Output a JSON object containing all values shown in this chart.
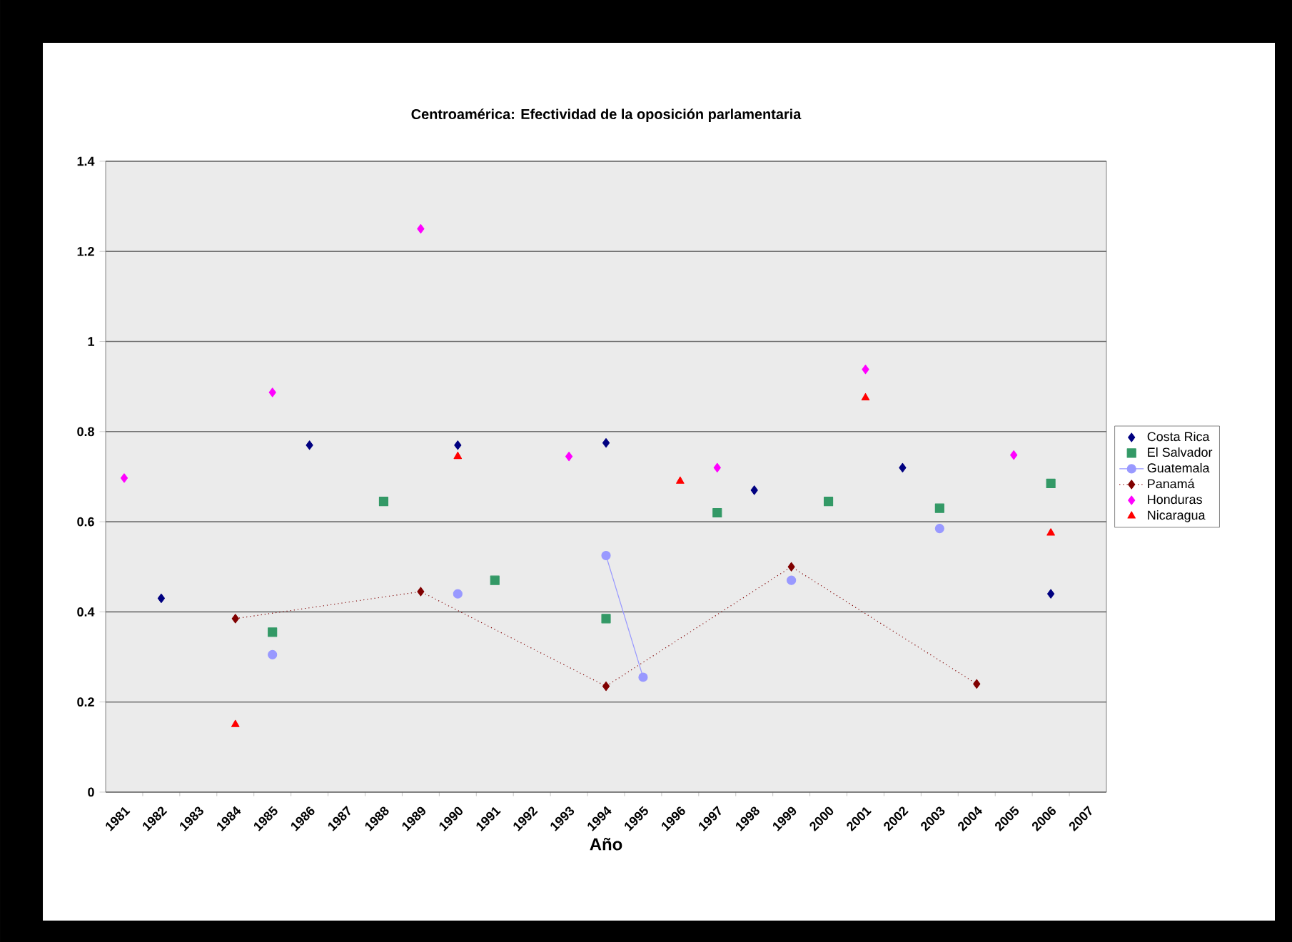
{
  "chart_data": {
    "type": "line",
    "title": "Centroamérica: Efectividad de la oposición parlamentaria",
    "xlabel": "Año",
    "series": [
      {
        "name": "Costa Rica",
        "type": "scatter",
        "color": "#000080",
        "marker": "diamond",
        "x": [
          1982,
          1986,
          1990,
          1994,
          1998,
          2002,
          2006
        ],
        "values": [
          0.43,
          0.77,
          0.77,
          0.775,
          0.67,
          0.72,
          0.44
        ]
      },
      {
        "name": "El Salvador",
        "type": "scatter",
        "color": "#339966",
        "marker": "square",
        "x": [
          1985,
          1988,
          1991,
          1994,
          1997,
          2000,
          2003,
          2006
        ],
        "values": [
          0.355,
          0.645,
          0.47,
          0.385,
          0.62,
          0.645,
          0.63,
          0.685
        ]
      },
      {
        "name": "Guatemala",
        "color": "#9999ff",
        "marker": "circle",
        "line_style": "solid",
        "x": [
          1985,
          1986,
          1990,
          1991,
          1994,
          1995,
          1996,
          1999,
          2000,
          2003
        ],
        "values": [
          0.305,
          null,
          0.44,
          null,
          0.525,
          0.255,
          null,
          0.47,
          null,
          0.585
        ]
      },
      {
        "name": "Panamá",
        "color": "#800000",
        "marker": "diamond",
        "line_style": "dotted",
        "x": [
          1984,
          1989,
          1994,
          1999,
          2004
        ],
        "values": [
          0.385,
          0.445,
          0.235,
          0.5,
          0.24
        ]
      },
      {
        "name": "Honduras",
        "type": "scatter",
        "color": "#ff00ff",
        "marker": "diamond",
        "x": [
          1981,
          1985,
          1989,
          1993,
          1997,
          2001,
          2005
        ],
        "values": [
          0.697,
          0.887,
          1.25,
          0.745,
          0.72,
          0.938,
          0.748
        ]
      },
      {
        "name": "Nicaragua",
        "type": "scatter",
        "color": "#ff0000",
        "marker": "triangle",
        "x": [
          1984,
          1990,
          1996,
          2001,
          2006
        ],
        "values": [
          0.15,
          0.745,
          0.69,
          0.875,
          0.575
        ]
      }
    ],
    "xlim": [
      1980.5,
      2007.5
    ],
    "xticks": [
      1981,
      1982,
      1983,
      1984,
      1985,
      1986,
      1987,
      1988,
      1989,
      1990,
      1991,
      1992,
      1993,
      1994,
      1995,
      1996,
      1997,
      1998,
      1999,
      2000,
      2001,
      2002,
      2003,
      2004,
      2005,
      2006,
      2007
    ],
    "ylim": [
      0,
      1.4
    ],
    "yticks": [
      0,
      0.2,
      0.4,
      0.6,
      0.8,
      1,
      1.2,
      1.4
    ],
    "grid": "y",
    "legend": "right"
  }
}
